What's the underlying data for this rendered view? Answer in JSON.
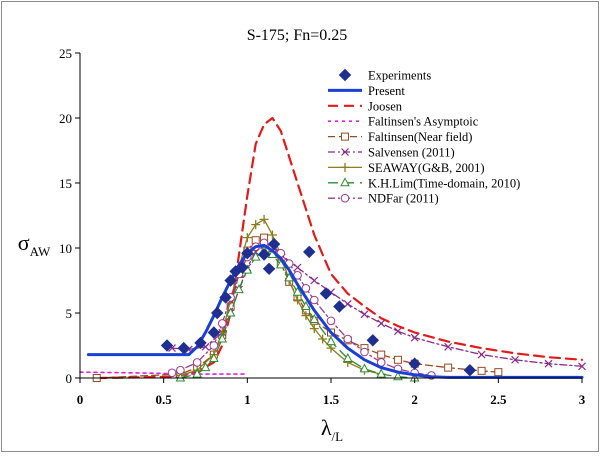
{
  "chart_data": {
    "type": "line",
    "title": "S-175; Fn=0.25",
    "ylabel": {
      "main": "σ",
      "sub": "AW"
    },
    "xlabel": {
      "main": "λ",
      "sub": "/L"
    },
    "xlim": [
      0,
      3
    ],
    "ylim": [
      0,
      25
    ],
    "x_ticks": [
      0,
      0.5,
      1,
      1.5,
      2,
      2.5,
      3
    ],
    "x_tick_labels": [
      "0",
      "0.5",
      "1",
      "1.5",
      "2",
      "2.5",
      "3"
    ],
    "y_ticks": [
      0,
      5,
      10,
      15,
      20,
      25
    ],
    "y_tick_labels": [
      "0",
      "5",
      "10",
      "15",
      "20",
      "25"
    ],
    "grid": false,
    "legend_position": "top-right",
    "series": [
      {
        "name": "Experiments",
        "style": "markers",
        "marker": "diamond",
        "color": "#1f2f8f",
        "x": [
          0.52,
          0.62,
          0.72,
          0.8,
          0.82,
          0.87,
          0.9,
          0.93,
          0.97,
          1.0,
          1.1,
          1.13,
          1.16,
          1.37,
          1.47,
          1.55,
          1.75,
          2.0,
          2.33
        ],
        "y": [
          2.5,
          2.3,
          2.7,
          3.5,
          5.0,
          6.2,
          7.5,
          8.2,
          8.5,
          9.6,
          9.5,
          8.4,
          10.3,
          9.7,
          6.5,
          5.5,
          2.9,
          1.1,
          0.6
        ]
      },
      {
        "name": "Present",
        "style": "solid",
        "width": 3,
        "color": "#1a3fd6",
        "x": [
          0.05,
          0.65,
          0.7,
          0.75,
          0.8,
          0.85,
          0.9,
          0.95,
          1.0,
          1.05,
          1.1,
          1.15,
          1.2,
          1.25,
          1.3,
          1.4,
          1.5,
          1.6,
          1.7,
          1.8,
          1.9,
          2.0,
          2.1,
          2.2,
          2.3,
          2.4,
          2.5,
          2.7,
          2.9,
          3.0
        ],
        "y": [
          1.8,
          1.8,
          2.4,
          3.5,
          4.8,
          6.2,
          7.5,
          8.7,
          9.6,
          10.1,
          10.2,
          9.8,
          9.2,
          8.3,
          7.2,
          5.2,
          3.5,
          2.3,
          1.4,
          0.8,
          0.45,
          0.25,
          0.1,
          0.05,
          0.05,
          0.05,
          0.05,
          0.05,
          0.05,
          0.05
        ]
      },
      {
        "name": "Joosen",
        "style": "dash",
        "width": 2.2,
        "color": "#e21a1a",
        "x": [
          0.1,
          0.6,
          0.7,
          0.8,
          0.85,
          0.9,
          0.95,
          1.0,
          1.05,
          1.1,
          1.15,
          1.2,
          1.25,
          1.3,
          1.4,
          1.5,
          1.6,
          1.7,
          1.8,
          1.9,
          2.0,
          2.2,
          2.4,
          2.6,
          2.8,
          3.0
        ],
        "y": [
          0.0,
          0.1,
          0.5,
          1.2,
          2.5,
          5.0,
          9.5,
          14.0,
          18.0,
          19.5,
          20.0,
          19.0,
          17.0,
          15.0,
          11.0,
          8.0,
          6.5,
          5.5,
          4.6,
          4.0,
          3.5,
          2.8,
          2.3,
          1.9,
          1.6,
          1.4
        ]
      },
      {
        "name": "Faltinsen's Asymptoic",
        "style": "dot",
        "width": 1.6,
        "color": "#e31de0",
        "x": [
          0.0,
          0.3,
          0.5,
          0.6,
          0.7,
          0.8,
          0.9,
          1.0
        ],
        "y": [
          0.45,
          0.4,
          0.35,
          0.3,
          0.3,
          0.3,
          0.3,
          0.3
        ]
      },
      {
        "name": "Faltinsen(Near field)",
        "style": "longdash",
        "marker": "square-open",
        "width": 1.3,
        "color": "#9a4a1e",
        "x": [
          0.1,
          0.6,
          0.7,
          0.8,
          0.85,
          0.9,
          0.95,
          1.0,
          1.05,
          1.1,
          1.15,
          1.2,
          1.25,
          1.3,
          1.35,
          1.4,
          1.5,
          1.6,
          1.7,
          1.8,
          1.9,
          2.0,
          2.2,
          2.4,
          2.5
        ],
        "y": [
          0.0,
          0.3,
          0.8,
          1.8,
          3.3,
          5.5,
          8.0,
          9.8,
          10.6,
          10.8,
          10.0,
          8.8,
          7.4,
          6.2,
          5.2,
          4.4,
          3.5,
          2.9,
          2.3,
          1.8,
          1.4,
          1.1,
          0.8,
          0.55,
          0.45
        ]
      },
      {
        "name": "Salvensen (2011)",
        "style": "dashdot",
        "marker": "x",
        "width": 1.3,
        "color": "#8a2a8a",
        "x": [
          0.55,
          0.65,
          0.75,
          0.85,
          0.9,
          0.95,
          1.0,
          1.05,
          1.1,
          1.15,
          1.2,
          1.3,
          1.4,
          1.5,
          1.6,
          1.7,
          1.8,
          1.9,
          2.0,
          2.2,
          2.4,
          2.6,
          2.8,
          3.0
        ],
        "y": [
          2.3,
          2.2,
          2.4,
          3.5,
          5.0,
          6.8,
          8.5,
          9.7,
          10.2,
          10.1,
          9.5,
          8.5,
          7.5,
          6.6,
          5.7,
          4.9,
          4.2,
          3.6,
          3.1,
          2.4,
          1.8,
          1.4,
          1.1,
          0.9
        ]
      },
      {
        "name": "SEAWAY(G&B, 2001)",
        "style": "solid",
        "marker": "plus",
        "width": 1.3,
        "color": "#8b7d1e",
        "x": [
          0.6,
          0.7,
          0.8,
          0.85,
          0.9,
          0.95,
          1.0,
          1.05,
          1.1,
          1.15,
          1.2,
          1.25,
          1.3,
          1.35,
          1.4,
          1.45,
          1.5,
          1.6,
          1.7,
          1.8
        ],
        "y": [
          0.2,
          0.6,
          1.8,
          3.5,
          6.0,
          8.5,
          10.8,
          11.8,
          12.2,
          11.0,
          9.5,
          7.5,
          6.0,
          4.8,
          3.8,
          3.0,
          2.3,
          1.2,
          0.6,
          0.3
        ]
      },
      {
        "name": "K.H.Lim(Time-domain, 2010)",
        "style": "dash",
        "marker": "triangle-open",
        "width": 1.3,
        "color": "#2e8b2e",
        "x": [
          0.6,
          0.7,
          0.75,
          0.8,
          0.85,
          0.9,
          0.95,
          1.0,
          1.05,
          1.1,
          1.15,
          1.2,
          1.25,
          1.3,
          1.35,
          1.4,
          1.5,
          1.6,
          1.7,
          1.8,
          1.9,
          2.0
        ],
        "y": [
          0.0,
          0.3,
          0.8,
          1.5,
          3.0,
          5.0,
          6.8,
          8.3,
          9.3,
          9.8,
          9.5,
          8.7,
          7.7,
          6.6,
          5.5,
          4.5,
          2.8,
          1.5,
          0.7,
          0.3,
          0.1,
          0.0
        ]
      },
      {
        "name": "NDFar (2011)",
        "style": "dashdot",
        "marker": "circle-open",
        "width": 1.3,
        "color": "#9b3a8f",
        "x": [
          0.55,
          0.6,
          0.7,
          0.8,
          0.85,
          0.9,
          0.95,
          1.0,
          1.05,
          1.1,
          1.15,
          1.2,
          1.25,
          1.3,
          1.35,
          1.4,
          1.5,
          1.6,
          1.7,
          1.8,
          1.9,
          2.0,
          2.1
        ],
        "y": [
          0.4,
          0.6,
          1.2,
          2.5,
          4.2,
          6.2,
          8.0,
          9.3,
          10.1,
          10.4,
          10.2,
          9.6,
          8.8,
          7.9,
          6.9,
          6.0,
          4.4,
          3.0,
          2.0,
          1.2,
          0.7,
          0.4,
          0.2
        ]
      }
    ]
  }
}
